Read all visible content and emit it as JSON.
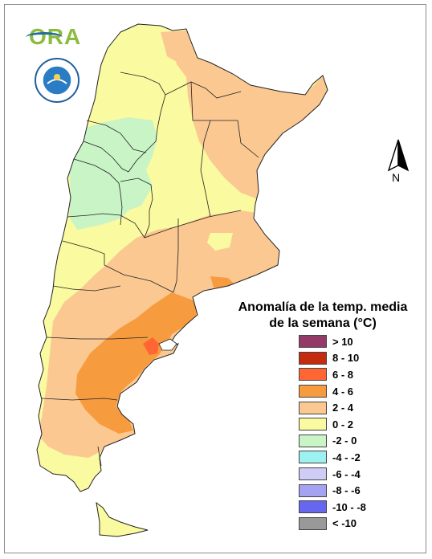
{
  "logo": {
    "text": "ORA"
  },
  "north_label": "N",
  "legend": {
    "title_line1": "Anomalía de la temp. media",
    "title_line2": "de la semana (°C)",
    "items": [
      {
        "label": "> 10",
        "color": "#943a68"
      },
      {
        "label": "8 - 10",
        "color": "#c42b10"
      },
      {
        "label": "6 - 8",
        "color": "#ff6633"
      },
      {
        "label": "4 - 6",
        "color": "#f79b3f"
      },
      {
        "label": "2 - 4",
        "color": "#fbc892"
      },
      {
        "label": "0 - 2",
        "color": "#fafaa0"
      },
      {
        "label": "-2 - 0",
        "color": "#c8f4c6"
      },
      {
        "label": "-4 - -2",
        "color": "#9ef1f1"
      },
      {
        "label": "-6 - -4",
        "color": "#cfcdf6"
      },
      {
        "label": "-8 - -6",
        "color": "#a5a2f2"
      },
      {
        "label": "-10 - -8",
        "color": "#6666ee"
      },
      {
        "label": "< -10",
        "color": "#999999"
      }
    ]
  },
  "colors": {
    "land_base": "#fafaa0",
    "warm_2_4": "#fbc892",
    "warm_4_6": "#f79b3f",
    "warm_6_8": "#ff6633",
    "cool_0": "#c8f4c6",
    "border": "#222222"
  }
}
